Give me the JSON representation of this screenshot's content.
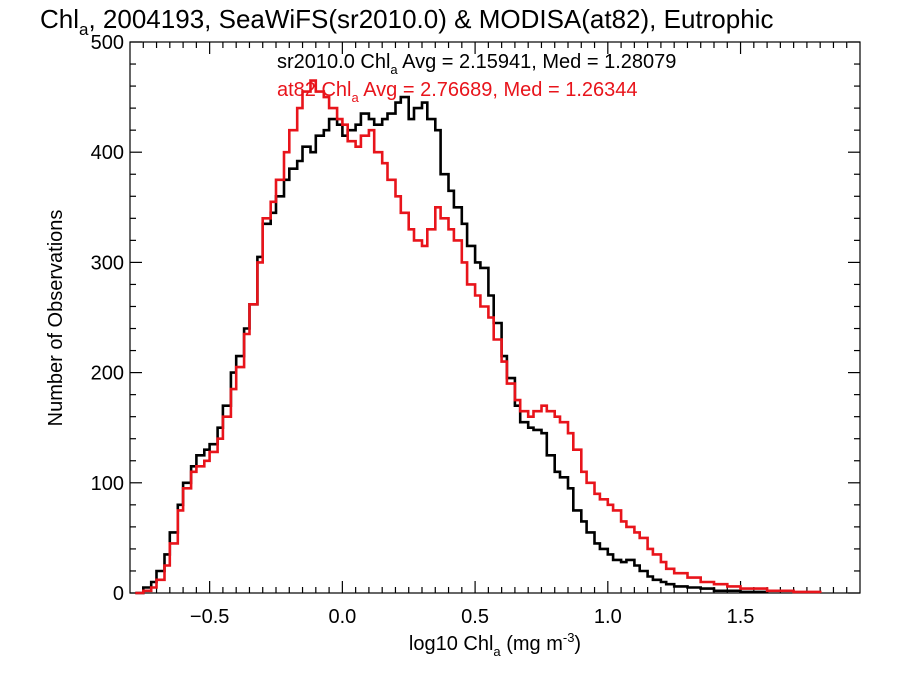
{
  "chart_data": {
    "type": "histogram",
    "title": {
      "prefix": "Chl",
      "sub": "a",
      "rest": ", 2004193, SeaWiFS(sr2010.0) & MODISA(at82), Eutrophic"
    },
    "xlabel": {
      "prefix": "log10 Chl",
      "sub": "a",
      "mid": " (mg m",
      "sup": "-3",
      "end": ")"
    },
    "ylabel": "Number of Observations",
    "xlim": [
      -0.8,
      1.95
    ],
    "ylim": [
      0,
      500
    ],
    "xticks": [
      -0.5,
      0.0,
      0.5,
      1.0,
      1.5
    ],
    "xtick_labels": [
      "−0.5",
      "0.0",
      "0.5",
      "1.0",
      "1.5"
    ],
    "yticks": [
      0,
      100,
      200,
      300,
      400,
      500
    ],
    "ytick_labels": [
      "0",
      "100",
      "200",
      "300",
      "400",
      "500"
    ],
    "grid": false,
    "series": [
      {
        "name": "sr2010.0",
        "color": "#000000",
        "annotation": {
          "prefix": "sr2010.0 Chl",
          "sub": "a",
          "rest": " Avg = 2.15941, Med = 1.28079"
        },
        "points": [
          [
            -0.78,
            0
          ],
          [
            -0.75,
            5
          ],
          [
            -0.72,
            10
          ],
          [
            -0.7,
            20
          ],
          [
            -0.67,
            35
          ],
          [
            -0.65,
            55
          ],
          [
            -0.62,
            80
          ],
          [
            -0.6,
            100
          ],
          [
            -0.57,
            115
          ],
          [
            -0.55,
            125
          ],
          [
            -0.52,
            130
          ],
          [
            -0.5,
            135
          ],
          [
            -0.47,
            150
          ],
          [
            -0.45,
            170
          ],
          [
            -0.42,
            200
          ],
          [
            -0.4,
            215
          ],
          [
            -0.37,
            240
          ],
          [
            -0.35,
            262
          ],
          [
            -0.32,
            305
          ],
          [
            -0.3,
            335
          ],
          [
            -0.27,
            345
          ],
          [
            -0.25,
            360
          ],
          [
            -0.22,
            375
          ],
          [
            -0.2,
            385
          ],
          [
            -0.17,
            392
          ],
          [
            -0.15,
            405
          ],
          [
            -0.12,
            400
          ],
          [
            -0.1,
            415
          ],
          [
            -0.07,
            420
          ],
          [
            -0.05,
            430
          ],
          [
            -0.02,
            425
          ],
          [
            0.0,
            415
          ],
          [
            0.02,
            420
          ],
          [
            0.05,
            425
          ],
          [
            0.07,
            435
          ],
          [
            0.1,
            430
          ],
          [
            0.12,
            425
          ],
          [
            0.15,
            430
          ],
          [
            0.17,
            435
          ],
          [
            0.2,
            445
          ],
          [
            0.22,
            450
          ],
          [
            0.25,
            430
          ],
          [
            0.27,
            440
          ],
          [
            0.3,
            445
          ],
          [
            0.32,
            430
          ],
          [
            0.35,
            420
          ],
          [
            0.37,
            380
          ],
          [
            0.4,
            365
          ],
          [
            0.42,
            350
          ],
          [
            0.45,
            335
          ],
          [
            0.47,
            315
          ],
          [
            0.5,
            300
          ],
          [
            0.52,
            295
          ],
          [
            0.55,
            270
          ],
          [
            0.57,
            245
          ],
          [
            0.6,
            215
          ],
          [
            0.62,
            195
          ],
          [
            0.65,
            170
          ],
          [
            0.67,
            155
          ],
          [
            0.7,
            150
          ],
          [
            0.72,
            148
          ],
          [
            0.75,
            145
          ],
          [
            0.77,
            125
          ],
          [
            0.8,
            110
          ],
          [
            0.82,
            105
          ],
          [
            0.85,
            95
          ],
          [
            0.87,
            75
          ],
          [
            0.9,
            65
          ],
          [
            0.92,
            55
          ],
          [
            0.95,
            45
          ],
          [
            0.97,
            40
          ],
          [
            1.0,
            35
          ],
          [
            1.02,
            30
          ],
          [
            1.05,
            28
          ],
          [
            1.07,
            30
          ],
          [
            1.1,
            25
          ],
          [
            1.12,
            20
          ],
          [
            1.15,
            15
          ],
          [
            1.17,
            12
          ],
          [
            1.2,
            10
          ],
          [
            1.22,
            8
          ],
          [
            1.25,
            6
          ],
          [
            1.3,
            5
          ],
          [
            1.35,
            4
          ],
          [
            1.4,
            2
          ],
          [
            1.5,
            1
          ],
          [
            1.6,
            0
          ]
        ]
      },
      {
        "name": "at82",
        "color": "#e8141b",
        "annotation": {
          "prefix": "at82 Chl",
          "sub": "a",
          "rest": " Avg = 2.76689, Med = 1.26344"
        },
        "points": [
          [
            -0.78,
            0
          ],
          [
            -0.75,
            2
          ],
          [
            -0.72,
            5
          ],
          [
            -0.7,
            12
          ],
          [
            -0.67,
            25
          ],
          [
            -0.65,
            45
          ],
          [
            -0.62,
            75
          ],
          [
            -0.6,
            95
          ],
          [
            -0.57,
            110
          ],
          [
            -0.55,
            115
          ],
          [
            -0.52,
            120
          ],
          [
            -0.5,
            128
          ],
          [
            -0.47,
            140
          ],
          [
            -0.45,
            160
          ],
          [
            -0.42,
            185
          ],
          [
            -0.4,
            205
          ],
          [
            -0.37,
            235
          ],
          [
            -0.35,
            262
          ],
          [
            -0.32,
            300
          ],
          [
            -0.3,
            340
          ],
          [
            -0.27,
            355
          ],
          [
            -0.25,
            375
          ],
          [
            -0.22,
            400
          ],
          [
            -0.2,
            420
          ],
          [
            -0.17,
            440
          ],
          [
            -0.15,
            455
          ],
          [
            -0.12,
            465
          ],
          [
            -0.1,
            455
          ],
          [
            -0.07,
            450
          ],
          [
            -0.05,
            440
          ],
          [
            -0.02,
            430
          ],
          [
            0.0,
            425
          ],
          [
            0.02,
            410
          ],
          [
            0.05,
            405
          ],
          [
            0.07,
            415
          ],
          [
            0.1,
            420
          ],
          [
            0.12,
            400
          ],
          [
            0.15,
            390
          ],
          [
            0.17,
            375
          ],
          [
            0.2,
            360
          ],
          [
            0.22,
            345
          ],
          [
            0.25,
            330
          ],
          [
            0.27,
            320
          ],
          [
            0.3,
            315
          ],
          [
            0.32,
            330
          ],
          [
            0.35,
            350
          ],
          [
            0.37,
            340
          ],
          [
            0.4,
            330
          ],
          [
            0.42,
            320
          ],
          [
            0.45,
            300
          ],
          [
            0.47,
            280
          ],
          [
            0.5,
            270
          ],
          [
            0.52,
            260
          ],
          [
            0.55,
            250
          ],
          [
            0.57,
            230
          ],
          [
            0.6,
            210
          ],
          [
            0.62,
            190
          ],
          [
            0.65,
            175
          ],
          [
            0.67,
            165
          ],
          [
            0.7,
            160
          ],
          [
            0.72,
            165
          ],
          [
            0.75,
            170
          ],
          [
            0.77,
            165
          ],
          [
            0.8,
            160
          ],
          [
            0.82,
            155
          ],
          [
            0.85,
            145
          ],
          [
            0.87,
            130
          ],
          [
            0.9,
            110
          ],
          [
            0.92,
            100
          ],
          [
            0.95,
            90
          ],
          [
            0.97,
            85
          ],
          [
            1.0,
            80
          ],
          [
            1.02,
            75
          ],
          [
            1.05,
            65
          ],
          [
            1.07,
            60
          ],
          [
            1.1,
            55
          ],
          [
            1.12,
            50
          ],
          [
            1.15,
            40
          ],
          [
            1.17,
            35
          ],
          [
            1.2,
            28
          ],
          [
            1.22,
            22
          ],
          [
            1.25,
            18
          ],
          [
            1.3,
            14
          ],
          [
            1.35,
            10
          ],
          [
            1.4,
            8
          ],
          [
            1.45,
            6
          ],
          [
            1.5,
            4
          ],
          [
            1.6,
            2
          ],
          [
            1.7,
            1
          ],
          [
            1.8,
            0
          ]
        ]
      }
    ]
  }
}
